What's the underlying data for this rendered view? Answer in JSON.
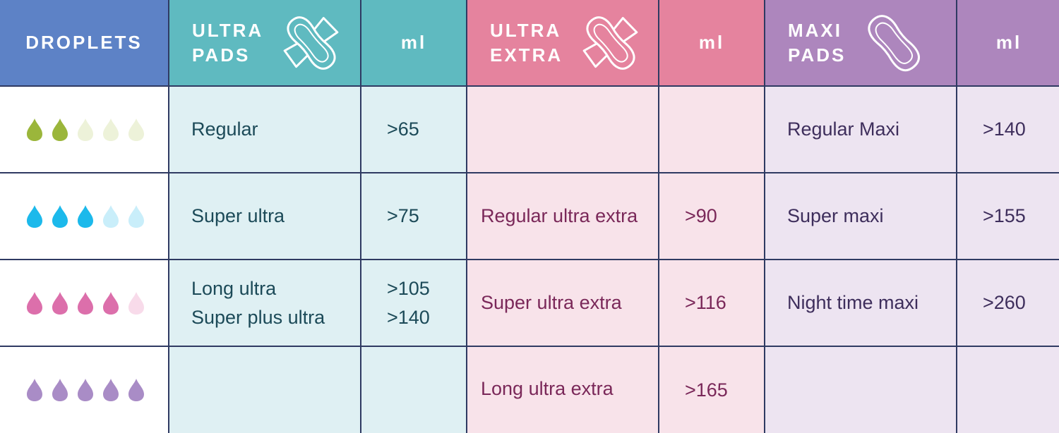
{
  "header": {
    "droplets": "DROPLETS",
    "ultra_pads": [
      "ULTRA",
      "PADS"
    ],
    "ultra_extra": [
      "ULTRA",
      "EXTRA"
    ],
    "maxi_pads": [
      "MAXI",
      "PADS"
    ],
    "ml": "ml"
  },
  "colors": {
    "droplets_header": "#5d82c6",
    "ultra_header": "#5fbac0",
    "extra_header": "#e5839e",
    "maxi_header": "#ad86bd",
    "ultra_cell": "#dff0f3",
    "extra_cell": "#f8e3ea",
    "maxi_cell": "#ede4f1",
    "grid_line": "#2f3a62"
  },
  "rows": [
    {
      "droplets": {
        "filled": 2,
        "total": 5,
        "color": "#9bb63b",
        "light": "#edf2d9"
      },
      "ultra_names": [
        "Regular"
      ],
      "ultra_ml": [
        ">65"
      ],
      "extra_names": [],
      "extra_ml": [],
      "maxi_names": [
        "Regular Maxi"
      ],
      "maxi_ml": [
        ">140"
      ]
    },
    {
      "droplets": {
        "filled": 3,
        "total": 5,
        "color": "#1cb9eb",
        "light": "#c9eefa"
      },
      "ultra_names": [
        "Super ultra"
      ],
      "ultra_ml": [
        ">75"
      ],
      "extra_names": [
        "Regular ultra extra"
      ],
      "extra_ml": [
        ">90"
      ],
      "maxi_names": [
        "Super maxi"
      ],
      "maxi_ml": [
        ">155"
      ]
    },
    {
      "droplets": {
        "filled": 4,
        "total": 5,
        "color": "#dc6fab",
        "light": "#f8dbea"
      },
      "ultra_names": [
        "Long ultra",
        "Super plus ultra"
      ],
      "ultra_ml": [
        ">105",
        ">140"
      ],
      "extra_names": [
        "Super ultra extra"
      ],
      "extra_ml": [
        ">116"
      ],
      "maxi_names": [
        "Night time maxi"
      ],
      "maxi_ml": [
        ">260"
      ]
    },
    {
      "droplets": {
        "filled": 5,
        "total": 5,
        "color": "#a98cc6",
        "light": "#e6dcf0"
      },
      "ultra_names": [],
      "ultra_ml": [],
      "extra_names": [
        "Long ultra extra"
      ],
      "extra_ml": [
        ">165"
      ],
      "maxi_names": [],
      "maxi_ml": []
    }
  ]
}
